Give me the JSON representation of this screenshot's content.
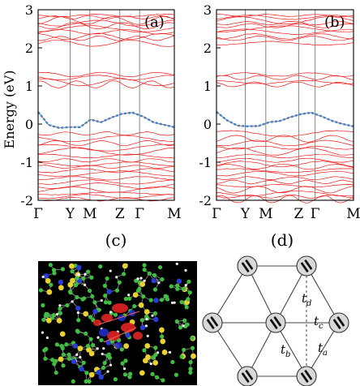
{
  "panel_labels": {
    "a": "(a)",
    "b": "(b)",
    "c": "(c)",
    "d": "(d)"
  },
  "y_axis_label": "Energy (eV)",
  "y_ticks": [
    "3",
    "2",
    "1",
    "0",
    "-1",
    "-2"
  ],
  "k_path": [
    "Γ",
    "Y",
    "M",
    "Z",
    "Γ",
    "M"
  ],
  "hoppings": [
    {
      "main": "t",
      "sub": "d"
    },
    {
      "main": "t",
      "sub": "c"
    },
    {
      "main": "t",
      "sub": "b"
    },
    {
      "main": "t",
      "sub": "a"
    }
  ],
  "colors": {
    "bands": "#f01818",
    "fit": "#2a8ed6",
    "image_bg": "#000000"
  },
  "chart_data": [
    {
      "type": "line",
      "title": "(a)",
      "ylabel": "Energy (eV)",
      "ylim": [
        -2,
        3
      ],
      "x_ticks": [
        "Γ",
        "Y",
        "M",
        "Z",
        "Γ",
        "M"
      ],
      "series": [
        {
          "values": [
            0.32,
            -0.02,
            -0.1,
            -0.08,
            -0.08,
            0.12,
            0.05,
            0.17,
            0.27,
            0.3,
            0.2,
            0.05,
            -0.02,
            -0.08
          ]
        }
      ]
    },
    {
      "type": "line",
      "title": "(b)",
      "ylabel": "Energy (eV)",
      "ylim": [
        -2,
        3
      ],
      "x_ticks": [
        "Γ",
        "Y",
        "M",
        "Z",
        "Γ",
        "M"
      ],
      "series": [
        {
          "values": [
            0.32,
            0.1,
            -0.04,
            -0.06,
            -0.05,
            0.05,
            0.08,
            0.18,
            0.26,
            0.3,
            0.2,
            0.08,
            0.0,
            -0.06
          ]
        }
      ]
    }
  ]
}
